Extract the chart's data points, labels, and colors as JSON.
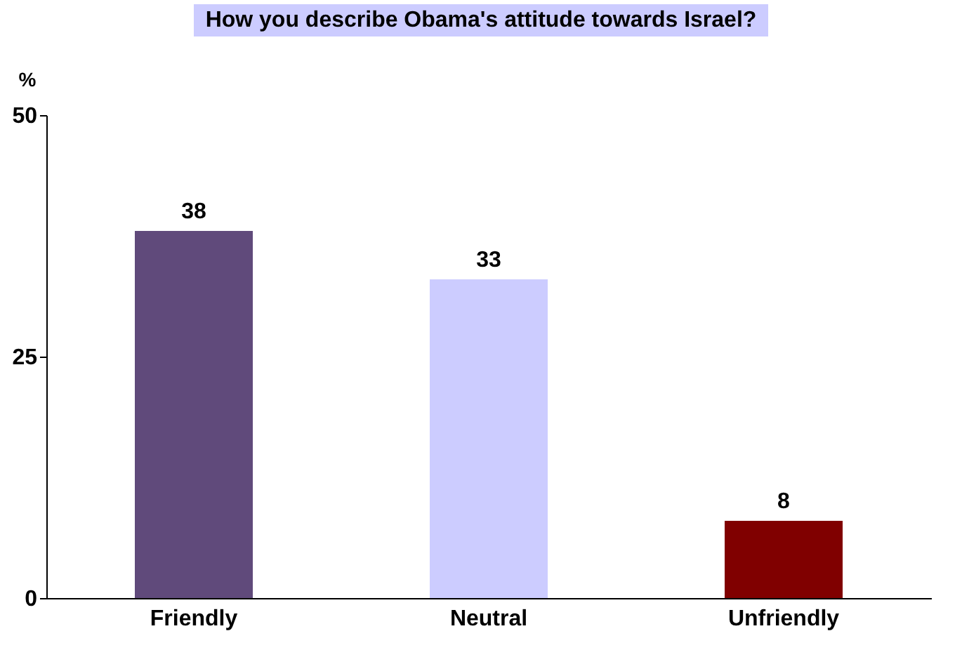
{
  "chart_data": {
    "type": "bar",
    "title": "How you describe Obama's attitude towards Israel?",
    "ylabel": "%",
    "categories": [
      "Friendly",
      "Neutral",
      "Unfriendly"
    ],
    "values": [
      38,
      33,
      8
    ],
    "colors": [
      "#604a7b",
      "#ccccff",
      "#800000"
    ],
    "ylim": [
      0,
      50
    ],
    "yticks": [
      0,
      25,
      50
    ],
    "grid": false,
    "data_labels": true
  }
}
